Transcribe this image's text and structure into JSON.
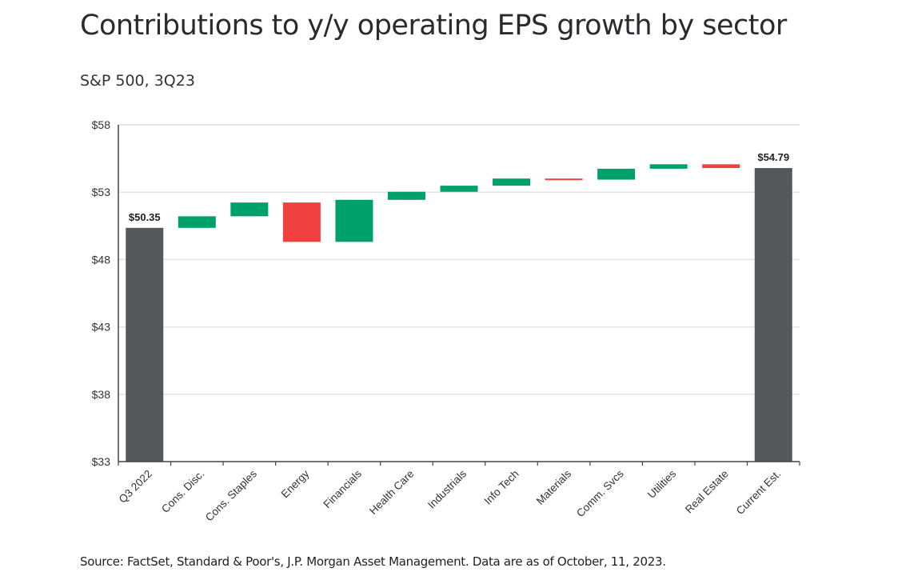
{
  "chart_data": {
    "type": "waterfall",
    "title": "Contributions to y/y operating EPS growth by sector",
    "subtitle": "S&P 500, 3Q23",
    "source": "Source: FactSet, Standard & Poor's, J.P. Morgan Asset Management. Data are as of October, 11, 2023.",
    "xlabel": "",
    "ylabel": "",
    "ylim": [
      33,
      58
    ],
    "yticks": [
      33,
      38,
      43,
      48,
      53,
      58
    ],
    "ytick_labels": [
      "$33",
      "$38",
      "$43",
      "$48",
      "$53",
      "$58"
    ],
    "grid": true,
    "categories": [
      "Q3 2022",
      "Cons. Disc.",
      "Cons. Staples",
      "Energy",
      "Financials",
      "Health Care",
      "Industrials",
      "Info Tech",
      "Materials",
      "Comm. Svcs",
      "Utilities",
      "Real Estate",
      "Current Est."
    ],
    "bars": [
      {
        "category": "Q3 2022",
        "kind": "total",
        "value": 50.35,
        "label": "$50.35"
      },
      {
        "category": "Cons. Disc.",
        "kind": "delta",
        "value": 0.86
      },
      {
        "category": "Cons. Staples",
        "kind": "delta",
        "value": 1.02
      },
      {
        "category": "Energy",
        "kind": "delta",
        "value": -2.92
      },
      {
        "category": "Financials",
        "kind": "delta",
        "value": 3.12
      },
      {
        "category": "Health Care",
        "kind": "delta",
        "value": 0.6
      },
      {
        "category": "Industrials",
        "kind": "delta",
        "value": 0.45
      },
      {
        "category": "Info Tech",
        "kind": "delta",
        "value": 0.53
      },
      {
        "category": "Materials",
        "kind": "delta",
        "value": -0.08
      },
      {
        "category": "Comm. Svcs",
        "kind": "delta",
        "value": 0.81
      },
      {
        "category": "Utilities",
        "kind": "delta",
        "value": 0.33
      },
      {
        "category": "Real Estate",
        "kind": "delta",
        "value": -0.28
      },
      {
        "category": "Current Est.",
        "kind": "total",
        "value": 54.79,
        "label": "$54.79"
      }
    ],
    "colors": {
      "total": "#55585b",
      "positive": "#00a06a",
      "negative": "#f04141",
      "grid": "#e2e2e2",
      "axis": "#444444"
    }
  }
}
